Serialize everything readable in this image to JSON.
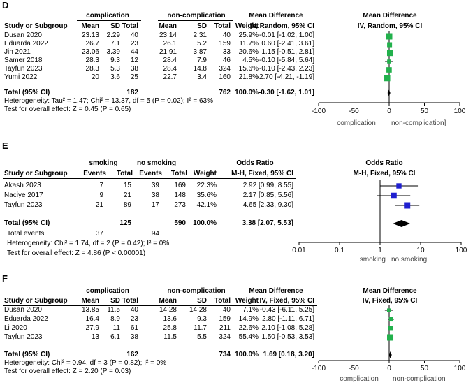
{
  "chart_data": [
    {
      "type": "table",
      "panel": "D",
      "plot_type": "forest",
      "group1": "complication",
      "group2": "non-complication",
      "columns": [
        "Study or Subgroup",
        "Mean",
        "SD",
        "Total",
        "Mean",
        "SD",
        "Total",
        "Weight",
        "IV, Random, 95% CI"
      ],
      "effect_header": "Mean Difference",
      "effect_header2": "Mean Difference",
      "plot_title": "IV, Random, 95% CI",
      "rows": [
        {
          "study": "Dusan  2020",
          "m1": "23.13",
          "sd1": "2.29",
          "n1": "40",
          "m2": "23.14",
          "sd2": "2.31",
          "n2": "40",
          "weight": "25.9%",
          "ci": "-0.01 [-1.02, 1.00]",
          "est": -0.01,
          "lo": -1.02,
          "hi": 1.0
        },
        {
          "study": "Eduarda 2022",
          "m1": "26.7",
          "sd1": "7.1",
          "n1": "23",
          "m2": "26.1",
          "sd2": "5.2",
          "n2": "159",
          "weight": "11.7%",
          "ci": "0.60 [-2.41, 3.61]",
          "est": 0.6,
          "lo": -2.41,
          "hi": 3.61
        },
        {
          "study": "Jin 2021",
          "m1": "23.06",
          "sd1": "3.39",
          "n1": "44",
          "m2": "21.91",
          "sd2": "3.87",
          "n2": "33",
          "weight": "20.6%",
          "ci": "1.15 [-0.51, 2.81]",
          "est": 1.15,
          "lo": -0.51,
          "hi": 2.81
        },
        {
          "study": "Samer 2018",
          "m1": "28.3",
          "sd1": "9.3",
          "n1": "12",
          "m2": "28.4",
          "sd2": "7.9",
          "n2": "46",
          "weight": "4.5%",
          "ci": "-0.10 [-5.84, 5.64]",
          "est": -0.1,
          "lo": -5.84,
          "hi": 5.64
        },
        {
          "study": "Tayfun 2023",
          "m1": "28.3",
          "sd1": "5.3",
          "n1": "38",
          "m2": "28.4",
          "sd2": "14.8",
          "n2": "324",
          "weight": "15.6%",
          "ci": "-0.10 [-2.43, 2.23]",
          "est": -0.1,
          "lo": -2.43,
          "hi": 2.23
        },
        {
          "study": "Yumi 2022",
          "m1": "20",
          "sd1": "3.6",
          "n1": "25",
          "m2": "22.7",
          "sd2": "3.4",
          "n2": "160",
          "weight": "21.8%",
          "ci": "-2.70 [-4.21, -1.19]",
          "est": -2.7,
          "lo": -4.21,
          "hi": -1.19
        }
      ],
      "total": {
        "label": "Total (95% CI)",
        "n1": "182",
        "n2": "762",
        "weight": "100.0%",
        "ci": "-0.30 [-1.62, 1.01]",
        "est": -0.3,
        "lo": -1.62,
        "hi": 1.01
      },
      "notes": [
        "Heterogeneity: Tau² = 1.47; Chi² = 13.37, df = 5 (P = 0.02); I² = 63%",
        "Test for overall effect: Z = 0.45 (P = 0.65)"
      ],
      "axis": {
        "scale": "linear",
        "range": [
          -100,
          100
        ],
        "ticks": [
          "-100",
          "-50",
          "0",
          "50",
          "100"
        ],
        "tick_values": [
          -100,
          -50,
          0,
          50,
          100
        ]
      },
      "favours": [
        "complication",
        "non-complication]"
      ]
    },
    {
      "type": "table",
      "panel": "E",
      "plot_type": "forest",
      "group1": "smoking",
      "group2": "no smoking",
      "columns": [
        "Study or Subgroup",
        "Events",
        "Total",
        "Events",
        "Total",
        "Weight",
        "M-H, Fixed, 95% CI"
      ],
      "effect_header": "Odds Ratio",
      "effect_header2": "Odds Ratio",
      "plot_title": "M-H, Fixed, 95% CI",
      "rows": [
        {
          "study": "Akash 2023",
          "e1": "7",
          "n1": "15",
          "e2": "39",
          "n2": "169",
          "weight": "22.3%",
          "ci": "2.92 [0.99, 8.55]",
          "est": 2.92,
          "lo": 0.99,
          "hi": 8.55
        },
        {
          "study": "Naciye 2017",
          "e1": "9",
          "n1": "21",
          "e2": "38",
          "n2": "148",
          "weight": "35.6%",
          "ci": "2.17 [0.85, 5.56]",
          "est": 2.17,
          "lo": 0.85,
          "hi": 5.56
        },
        {
          "study": "Tayfun 2023",
          "e1": "21",
          "n1": "89",
          "e2": "17",
          "n2": "273",
          "weight": "42.1%",
          "ci": "4.65 [2.33, 9.30]",
          "est": 4.65,
          "lo": 2.33,
          "hi": 9.3
        }
      ],
      "total": {
        "label": "Total (95% CI)",
        "n1": "125",
        "n2": "590",
        "weight": "100.0%",
        "ci": "3.38 [2.07, 5.53]",
        "est": 3.38,
        "lo": 2.07,
        "hi": 5.53
      },
      "total_events": {
        "label": "Total events",
        "e1": "37",
        "e2": "94"
      },
      "notes": [
        "Heterogeneity: Chi² = 1.74, df = 2 (P = 0.42); I² = 0%",
        "Test for overall effect: Z = 4.86 (P < 0.00001)"
      ],
      "axis": {
        "scale": "log",
        "range": [
          0.01,
          100
        ],
        "ticks": [
          "0.01",
          "0.1",
          "1",
          "10",
          "100"
        ],
        "tick_values": [
          0.01,
          0.1,
          1,
          10,
          100
        ]
      },
      "favours": [
        "smoking",
        "no smoking"
      ]
    },
    {
      "type": "table",
      "panel": "F",
      "plot_type": "forest",
      "group1": "complication",
      "group2": "non-complication",
      "columns": [
        "Study or Subgroup",
        "Mean",
        "SD",
        "Total",
        "Mean",
        "SD",
        "Total",
        "Weight",
        "IV, Fixed, 95% CI"
      ],
      "effect_header": "Mean Difference",
      "effect_header2": "Mean Difference",
      "plot_title": "IV, Fixed, 95% CI",
      "rows": [
        {
          "study": "Dusan  2020",
          "m1": "13.85",
          "sd1": "11.5",
          "n1": "40",
          "m2": "14.28",
          "sd2": "14.28",
          "n2": "40",
          "weight": "7.1%",
          "ci": "-0.43 [-6.11, 5.25]",
          "est": -0.43,
          "lo": -6.11,
          "hi": 5.25
        },
        {
          "study": "Eduarda 2022",
          "m1": "16.4",
          "sd1": "8.9",
          "n1": "23",
          "m2": "13.6",
          "sd2": "9.3",
          "n2": "159",
          "weight": "14.9%",
          "ci": "2.80 [-1.11, 6.71]",
          "est": 2.8,
          "lo": -1.11,
          "hi": 6.71
        },
        {
          "study": "Li 2020",
          "m1": "27.9",
          "sd1": "11",
          "n1": "61",
          "m2": "25.8",
          "sd2": "11.7",
          "n2": "211",
          "weight": "22.6%",
          "ci": "2.10 [-1.08, 5.28]",
          "est": 2.1,
          "lo": -1.08,
          "hi": 5.28
        },
        {
          "study": "Tayfun 2023",
          "m1": "13",
          "sd1": "6.1",
          "n1": "38",
          "m2": "11.5",
          "sd2": "5.5",
          "n2": "324",
          "weight": "55.4%",
          "ci": "1.50 [-0.53, 3.53]",
          "est": 1.5,
          "lo": -0.53,
          "hi": 3.53
        }
      ],
      "total": {
        "label": "Total (95% CI)",
        "n1": "162",
        "n2": "734",
        "weight": "100.0%",
        "ci": "1.69 [0.18, 3.20]",
        "est": 1.69,
        "lo": 0.18,
        "hi": 3.2
      },
      "notes": [
        "Heterogeneity: Chi² = 0.94, df = 3 (P = 0.82); I² = 0%",
        "Test for overall effect: Z = 2.20 (P = 0.03)"
      ],
      "axis": {
        "scale": "linear",
        "range": [
          -100,
          100
        ],
        "ticks": [
          "-100",
          "-50",
          "0",
          "50",
          "100"
        ],
        "tick_values": [
          -100,
          -50,
          0,
          50,
          100
        ]
      },
      "favours": [
        "complication",
        "non-complication"
      ]
    }
  ],
  "colors": {
    "square_md": "#22b14c",
    "square_or": "#1f1fd0",
    "diamond": "#000000",
    "line": "#000000"
  }
}
